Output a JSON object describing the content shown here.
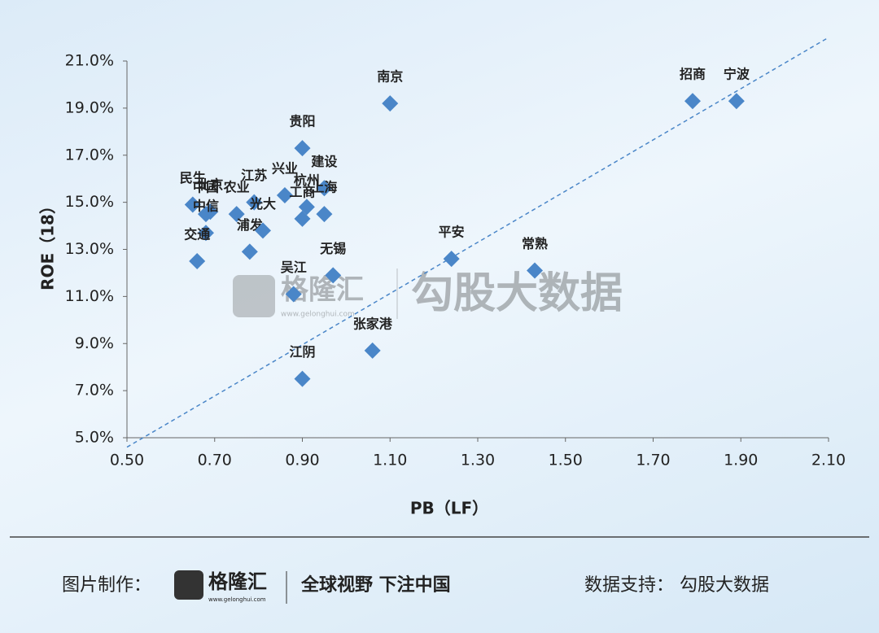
{
  "chart_data": {
    "type": "scatter",
    "x_label": "PB（LF）",
    "y_label": "ROE（18）",
    "labels": [
      "南京",
      "招商",
      "宁波",
      "贵阳",
      "建设",
      "兴业",
      "杭州",
      "上海",
      "工商",
      "民生",
      "中国",
      "北京",
      "中信",
      "交通",
      "农业",
      "江苏",
      "浦发",
      "光大",
      "无锡",
      "吴江",
      "张家港",
      "江阴",
      "平安",
      "常熟"
    ],
    "x": [
      1.1,
      1.79,
      1.89,
      0.9,
      0.95,
      0.86,
      0.91,
      0.95,
      0.9,
      0.65,
      0.68,
      0.69,
      0.68,
      0.66,
      0.75,
      0.79,
      0.78,
      0.81,
      0.97,
      0.88,
      1.06,
      0.9,
      1.24,
      1.43
    ],
    "values": [
      19.2,
      19.3,
      19.3,
      17.3,
      15.6,
      15.3,
      14.8,
      14.5,
      14.3,
      14.9,
      14.5,
      14.6,
      13.7,
      12.5,
      14.5,
      15.0,
      12.9,
      13.8,
      11.9,
      11.1,
      8.7,
      7.5,
      12.6,
      12.1
    ],
    "color": "#4a86c8",
    "trend_line": {
      "x": [
        0.5,
        2.1
      ],
      "values": [
        4.6,
        22.0
      ],
      "color": "#4a86c8"
    },
    "xlim": [
      0.5,
      2.1
    ],
    "xticks": [
      {
        "value": 0.5,
        "label": "0.50"
      },
      {
        "value": 0.7,
        "label": "0.70"
      },
      {
        "value": 0.9,
        "label": "0.90"
      },
      {
        "value": 1.1,
        "label": "1.10"
      },
      {
        "value": 1.3,
        "label": "1.30"
      },
      {
        "value": 1.5,
        "label": "1.50"
      },
      {
        "value": 1.7,
        "label": "1.70"
      },
      {
        "value": 1.9,
        "label": "1.90"
      },
      {
        "value": 2.1,
        "label": "2.10"
      }
    ],
    "ylim": [
      5,
      21
    ],
    "yticks": [
      {
        "value": 5,
        "label": "5.0%"
      },
      {
        "value": 7,
        "label": "7.0%"
      },
      {
        "value": 9,
        "label": "9.0%"
      },
      {
        "value": 11,
        "label": "11.0%"
      },
      {
        "value": 13,
        "label": "13.0%"
      },
      {
        "value": 15,
        "label": "15.0%"
      },
      {
        "value": 17,
        "label": "17.0%"
      },
      {
        "value": 19,
        "label": "19.0%"
      },
      {
        "value": 21,
        "label": "21.0%"
      }
    ]
  },
  "watermark": {
    "brand": "格隆汇",
    "site": "www.gelonghui.com",
    "source": "勾股大数据"
  },
  "footer": {
    "made_by": "图片制作：",
    "brand": "格隆汇",
    "site": "www.gelonghui.com",
    "slogan": "全球视野 下注中国",
    "data_support": "数据支持：  勾股大数据"
  }
}
